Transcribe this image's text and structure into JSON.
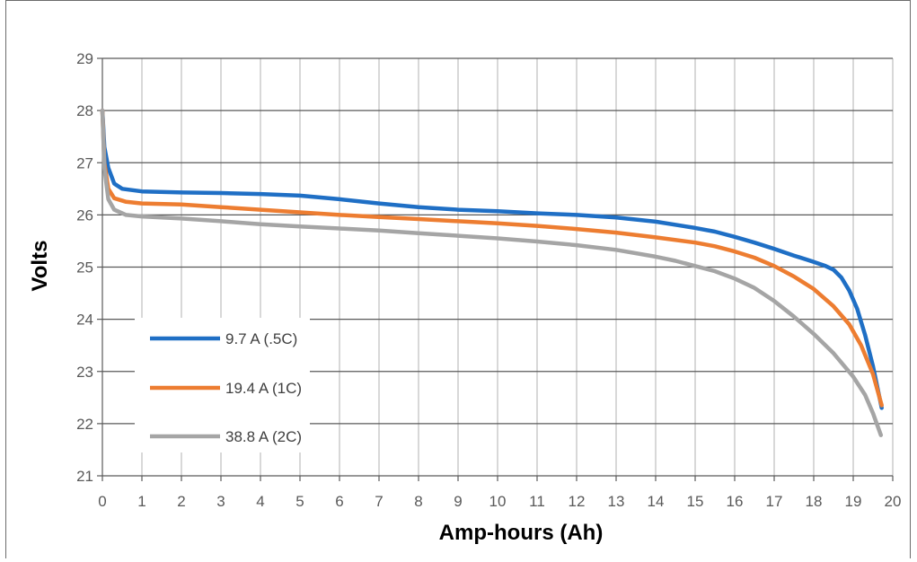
{
  "chart_data": {
    "type": "line",
    "title": "",
    "xlabel": "Amp-hours (Ah)",
    "ylabel": "Volts",
    "xlim": [
      0,
      20
    ],
    "ylim": [
      21,
      29
    ],
    "x_ticks": [
      "0",
      "1",
      "2",
      "3",
      "4",
      "5",
      "6",
      "7",
      "8",
      "9",
      "10",
      "11",
      "12",
      "13",
      "14",
      "15",
      "16",
      "17",
      "18",
      "19",
      "20"
    ],
    "y_ticks": [
      "21",
      "22",
      "23",
      "24",
      "25",
      "26",
      "27",
      "28",
      "29"
    ],
    "grid": true,
    "legend_position": "bottom-left",
    "series": [
      {
        "name": "9.7 A (.5C)",
        "color": "#1f6fc5",
        "points": [
          [
            0,
            28.0
          ],
          [
            0.05,
            27.3
          ],
          [
            0.15,
            26.9
          ],
          [
            0.3,
            26.6
          ],
          [
            0.5,
            26.5
          ],
          [
            1,
            26.45
          ],
          [
            2,
            26.43
          ],
          [
            3,
            26.42
          ],
          [
            4,
            26.4
          ],
          [
            5,
            26.37
          ],
          [
            6,
            26.3
          ],
          [
            7,
            26.22
          ],
          [
            8,
            26.15
          ],
          [
            9,
            26.1
          ],
          [
            10,
            26.07
          ],
          [
            11,
            26.03
          ],
          [
            12,
            26.0
          ],
          [
            13,
            25.95
          ],
          [
            14,
            25.87
          ],
          [
            15,
            25.75
          ],
          [
            15.5,
            25.68
          ],
          [
            16,
            25.58
          ],
          [
            16.5,
            25.47
          ],
          [
            17,
            25.35
          ],
          [
            17.5,
            25.22
          ],
          [
            18,
            25.1
          ],
          [
            18.3,
            25.02
          ],
          [
            18.5,
            24.95
          ],
          [
            18.7,
            24.8
          ],
          [
            18.9,
            24.55
          ],
          [
            19.1,
            24.2
          ],
          [
            19.3,
            23.7
          ],
          [
            19.5,
            23.1
          ],
          [
            19.72,
            22.3
          ]
        ]
      },
      {
        "name": "19.4 A (1C)",
        "color": "#ed7d31",
        "points": [
          [
            0,
            28.0
          ],
          [
            0.05,
            27.0
          ],
          [
            0.15,
            26.5
          ],
          [
            0.3,
            26.32
          ],
          [
            0.6,
            26.25
          ],
          [
            1,
            26.22
          ],
          [
            2,
            26.2
          ],
          [
            3,
            26.15
          ],
          [
            4,
            26.1
          ],
          [
            5,
            26.05
          ],
          [
            6,
            26.0
          ],
          [
            7,
            25.96
          ],
          [
            8,
            25.92
          ],
          [
            9,
            25.88
          ],
          [
            10,
            25.84
          ],
          [
            11,
            25.79
          ],
          [
            12,
            25.73
          ],
          [
            13,
            25.66
          ],
          [
            14,
            25.57
          ],
          [
            15,
            25.47
          ],
          [
            15.5,
            25.4
          ],
          [
            16,
            25.3
          ],
          [
            16.5,
            25.18
          ],
          [
            17,
            25.02
          ],
          [
            17.5,
            24.82
          ],
          [
            18,
            24.58
          ],
          [
            18.5,
            24.25
          ],
          [
            18.9,
            23.9
          ],
          [
            19.2,
            23.5
          ],
          [
            19.5,
            22.95
          ],
          [
            19.72,
            22.35
          ]
        ]
      },
      {
        "name": "38.8 A (2C)",
        "color": "#a5a5a5",
        "points": [
          [
            0,
            28.0
          ],
          [
            0.05,
            26.9
          ],
          [
            0.15,
            26.3
          ],
          [
            0.3,
            26.1
          ],
          [
            0.6,
            26.0
          ],
          [
            1,
            25.97
          ],
          [
            2,
            25.93
          ],
          [
            3,
            25.88
          ],
          [
            4,
            25.82
          ],
          [
            5,
            25.78
          ],
          [
            6,
            25.74
          ],
          [
            7,
            25.7
          ],
          [
            8,
            25.65
          ],
          [
            9,
            25.6
          ],
          [
            10,
            25.55
          ],
          [
            11,
            25.49
          ],
          [
            12,
            25.42
          ],
          [
            13,
            25.33
          ],
          [
            14,
            25.2
          ],
          [
            14.5,
            25.12
          ],
          [
            15,
            25.02
          ],
          [
            15.5,
            24.92
          ],
          [
            16,
            24.78
          ],
          [
            16.5,
            24.6
          ],
          [
            17,
            24.35
          ],
          [
            17.5,
            24.05
          ],
          [
            18,
            23.72
          ],
          [
            18.5,
            23.35
          ],
          [
            19,
            22.9
          ],
          [
            19.3,
            22.55
          ],
          [
            19.5,
            22.2
          ],
          [
            19.7,
            21.78
          ]
        ]
      }
    ]
  }
}
